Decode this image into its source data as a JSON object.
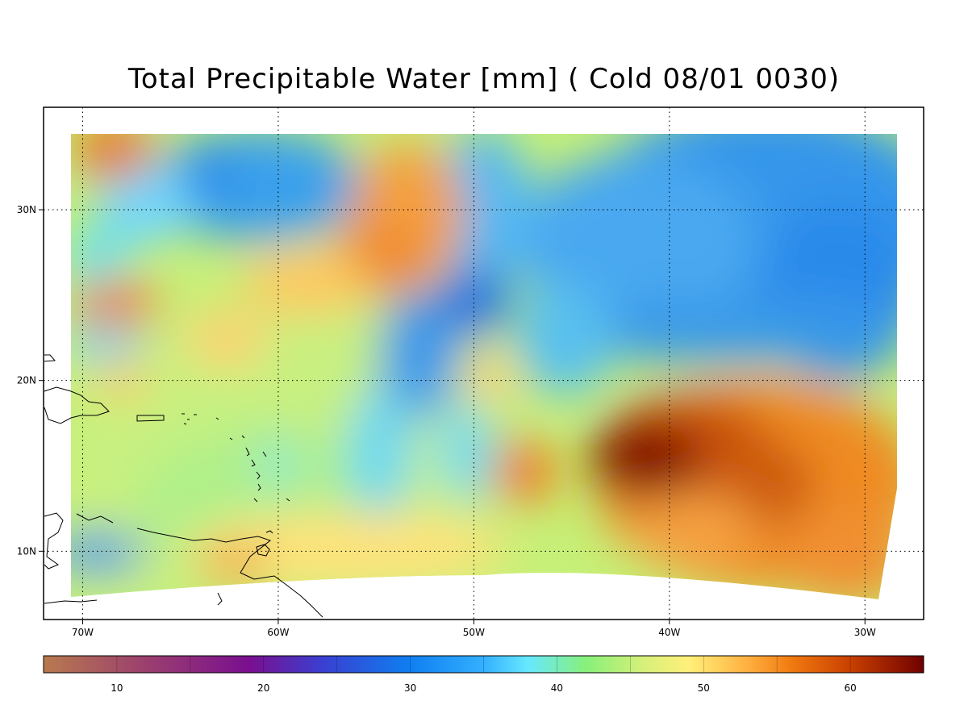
{
  "title": "Total Precipitable Water [mm]  (  Cold  08/01 0030)",
  "map": {
    "lon_range": [
      -72,
      -27
    ],
    "lat_range": [
      6,
      36
    ],
    "lon_ticks": [
      {
        "lon": -70,
        "label": "70W"
      },
      {
        "lon": -60,
        "label": "60W"
      },
      {
        "lon": -50,
        "label": "50W"
      },
      {
        "lon": -40,
        "label": "40W"
      },
      {
        "lon": -30,
        "label": "30W"
      }
    ],
    "lat_ticks": [
      {
        "lat": 10,
        "label": "10N"
      },
      {
        "lat": 20,
        "label": "20N"
      },
      {
        "lat": 30,
        "label": "30N"
      }
    ],
    "gridlines": "dotted"
  },
  "field": {
    "variable": "Total Precipitable Water",
    "units": "mm",
    "features": [
      {
        "type": "max",
        "lon": -40.5,
        "lat": 15.8,
        "value": 64
      },
      {
        "type": "max",
        "lon": -35,
        "lat": 14.5,
        "value": 60
      },
      {
        "type": "max",
        "lon": -47,
        "lat": 15,
        "value": 56
      },
      {
        "type": "max",
        "lon": -68,
        "lat": 35,
        "value": 55
      },
      {
        "type": "max",
        "lon": -68,
        "lat": 25.5,
        "value": 56
      },
      {
        "type": "max",
        "lon": -53,
        "lat": 30,
        "value": 54
      },
      {
        "type": "max",
        "lon": -55,
        "lat": 28,
        "value": 53
      },
      {
        "type": "min",
        "lon": -50,
        "lat": 25.5,
        "value": 27
      },
      {
        "type": "min",
        "lon": -65,
        "lat": 33,
        "value": 28
      },
      {
        "type": "min",
        "lon": -35,
        "lat": 31,
        "value": 29
      },
      {
        "type": "min",
        "lon": -30,
        "lat": 22.5,
        "value": 28
      },
      {
        "type": "min",
        "lon": -52,
        "lat": 20.5,
        "value": 31
      },
      {
        "type": "min",
        "lon": -69,
        "lat": 9.5,
        "value": 29
      }
    ]
  },
  "colorbar": {
    "min": 5,
    "max": 65,
    "ticks": [
      {
        "value": 10,
        "label": "10"
      },
      {
        "value": 20,
        "label": "20"
      },
      {
        "value": 30,
        "label": "30"
      },
      {
        "value": 40,
        "label": "40"
      },
      {
        "value": 50,
        "label": "50"
      },
      {
        "value": 60,
        "label": "60"
      }
    ],
    "stops": [
      {
        "value": 5,
        "color": "#b87a4e"
      },
      {
        "value": 12,
        "color": "#9b3f6e"
      },
      {
        "value": 19,
        "color": "#7a0f8f"
      },
      {
        "value": 24,
        "color": "#3a3fd0"
      },
      {
        "value": 30,
        "color": "#0f7ff0"
      },
      {
        "value": 35,
        "color": "#33b0ff"
      },
      {
        "value": 38,
        "color": "#66e8ff"
      },
      {
        "value": 42,
        "color": "#88f07a"
      },
      {
        "value": 46,
        "color": "#d8f07a"
      },
      {
        "value": 49,
        "color": "#fff07a"
      },
      {
        "value": 53,
        "color": "#ffb040"
      },
      {
        "value": 56,
        "color": "#f07a10"
      },
      {
        "value": 60,
        "color": "#c84000"
      },
      {
        "value": 65,
        "color": "#700000"
      }
    ]
  }
}
